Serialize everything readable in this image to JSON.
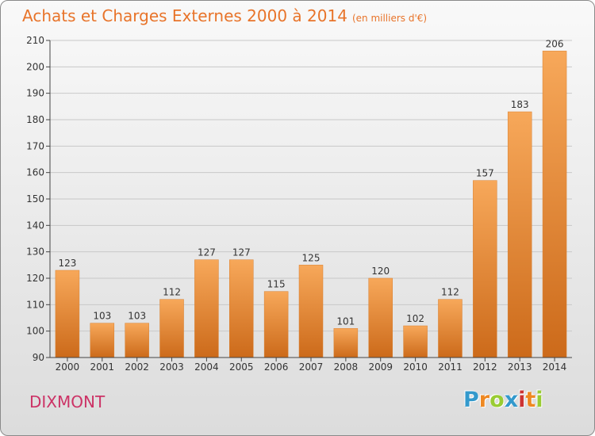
{
  "title": "Achats et Charges Externes 2000 à 2014",
  "unit": "(en milliers d'€)",
  "town": "DIXMONT",
  "logo": {
    "letters": [
      "P",
      "r",
      "o",
      "x",
      "i",
      "t",
      "i"
    ],
    "colors": [
      "#3399cc",
      "#ee8822",
      "#99cc33",
      "#3399cc",
      "#cc3333",
      "#ee8822",
      "#99cc33"
    ]
  },
  "colors": {
    "bar_light": "#f7a85a",
    "bar_dark": "#cc6a1a",
    "title": "#e8742a",
    "town": "#cc3366"
  },
  "chart_data": {
    "type": "bar",
    "categories": [
      "2000",
      "2001",
      "2002",
      "2003",
      "2004",
      "2005",
      "2006",
      "2007",
      "2008",
      "2009",
      "2010",
      "2011",
      "2012",
      "2013",
      "2014"
    ],
    "values": [
      123,
      103,
      103,
      112,
      127,
      127,
      115,
      125,
      101,
      120,
      102,
      112,
      157,
      183,
      206
    ],
    "data_labels": [
      "123",
      "103",
      "103",
      "112",
      "127",
      "127",
      "115",
      "125",
      "101",
      "120",
      "102",
      "112",
      "157",
      "183",
      "206"
    ],
    "yticks": [
      "90",
      "100",
      "110",
      "120",
      "130",
      "140",
      "150",
      "160",
      "170",
      "180",
      "190",
      "200",
      "210"
    ],
    "ylim": [
      90,
      210
    ],
    "grid": true,
    "legend": "none"
  }
}
